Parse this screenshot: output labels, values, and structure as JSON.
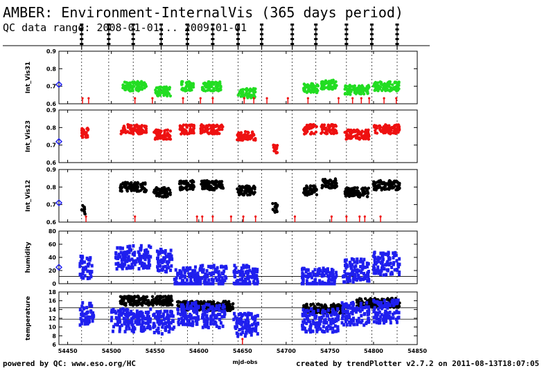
{
  "header": {
    "title": "AMBER: Environment-InternalVis (365 days period)",
    "subtitle": "QC data range: 2008-01-01... 2009-01-01"
  },
  "footer": {
    "left": "powered by QC: www.eso.org/HC",
    "right": "created by trendPlotter v2.7.2 on 2011-08-13T18:07:05"
  },
  "colors": {
    "green": "#22dd22",
    "red": "#ee1111",
    "black": "#000000",
    "blue": "#1f1fee",
    "diamond": "#1f1fee"
  },
  "chart_data": {
    "type": "scatter",
    "xlabel": "mjd-obs",
    "xlim": [
      54440,
      54850
    ],
    "x_ticks": [
      "54450",
      "54500",
      "54550",
      "54600",
      "54650",
      "54700",
      "54750",
      "54800",
      "54850"
    ],
    "night_markers": [
      54466,
      54497,
      54525,
      54557,
      54587,
      54616,
      54645,
      54672,
      54707,
      54734,
      54769,
      54798,
      54827
    ],
    "panels": [
      {
        "ylabel": "Int_Vis31",
        "ylim": [
          0.6,
          0.9
        ],
        "y_ticks": [
          "0.6",
          "0.7",
          "0.8",
          "0.9"
        ],
        "series": [
          {
            "color_key": "green",
            "clusters": [
              [
                54513,
                54540,
                0.7
              ],
              [
                54550,
                54568,
                0.67
              ],
              [
                54580,
                54594,
                0.7
              ],
              [
                54604,
                54626,
                0.7
              ],
              [
                54645,
                54665,
                0.66
              ],
              [
                54720,
                54737,
                0.69
              ],
              [
                54740,
                54758,
                0.71
              ],
              [
                54767,
                54795,
                0.68
              ],
              [
                54800,
                54830,
                0.7
              ]
            ]
          },
          {
            "color_key": "red",
            "marks": [
              54467,
              54474,
              54527,
              54547,
              54582,
              54602,
              54616,
              54652,
              54663,
              54678,
              54702,
              54725,
              54760,
              54776,
              54786,
              54795,
              54812,
              54826
            ]
          }
        ],
        "reference_value": 0.71
      },
      {
        "ylabel": "Int_Vis23",
        "ylim": [
          0.6,
          0.9
        ],
        "y_ticks": [
          "0.6",
          "0.7",
          "0.8",
          "0.9"
        ],
        "series": [
          {
            "color_key": "red",
            "clusters": [
              [
                54466,
                54474,
                0.77
              ],
              [
                54511,
                54540,
                0.79
              ],
              [
                54548,
                54568,
                0.76
              ],
              [
                54578,
                54595,
                0.79
              ],
              [
                54602,
                54628,
                0.79
              ],
              [
                54644,
                54665,
                0.75
              ],
              [
                54685,
                54690,
                0.68
              ],
              [
                54720,
                54735,
                0.79
              ],
              [
                54740,
                54758,
                0.79
              ],
              [
                54767,
                54795,
                0.76
              ],
              [
                54800,
                54830,
                0.79
              ]
            ]
          }
        ],
        "reference_value": 0.72
      },
      {
        "ylabel": "Int_Vis12",
        "ylim": [
          0.6,
          0.9
        ],
        "y_ticks": [
          "0.6",
          "0.7",
          "0.8",
          "0.9"
        ],
        "series": [
          {
            "color_key": "black",
            "clusters": [
              [
                54466,
                54470,
                0.67
              ],
              [
                54510,
                54540,
                0.8
              ],
              [
                54548,
                54568,
                0.77
              ],
              [
                54578,
                54595,
                0.81
              ],
              [
                54602,
                54628,
                0.81
              ],
              [
                54644,
                54665,
                0.78
              ],
              [
                54684,
                54690,
                0.68
              ],
              [
                54720,
                54735,
                0.78
              ],
              [
                54740,
                54758,
                0.82
              ],
              [
                54767,
                54795,
                0.77
              ],
              [
                54800,
                54830,
                0.81
              ]
            ]
          },
          {
            "color_key": "red",
            "marks": [
              54471,
              54527,
              54598,
              54604,
              54616,
              54637,
              54651,
              54665,
              54710,
              54752,
              54769,
              54784,
              54790,
              54808
            ]
          }
        ],
        "reference_value": 0.71
      },
      {
        "ylabel": "humidity",
        "ylim": [
          0,
          80
        ],
        "y_ticks": [
          "0",
          "20",
          "40",
          "60",
          "80"
        ],
        "hlines": [
          11
        ],
        "series": [
          {
            "color_key": "blue",
            "clusters": [
              [
                54464,
                54478,
                25
              ],
              [
                54505,
                54545,
                40
              ],
              [
                54552,
                54570,
                35
              ],
              [
                54572,
                54600,
                8
              ],
              [
                54600,
                54632,
                10
              ],
              [
                54640,
                54668,
                10
              ],
              [
                54718,
                54758,
                6
              ],
              [
                54765,
                54795,
                20
              ],
              [
                54800,
                54830,
                30
              ]
            ]
          }
        ],
        "reference_value": 25
      },
      {
        "ylabel": "temperature",
        "ylim": [
          6,
          18
        ],
        "y_ticks": [
          "6",
          "8",
          "10",
          "12",
          "14",
          "16",
          "18"
        ],
        "hlines": [
          14.4,
          11.8
        ],
        "series": [
          {
            "color_key": "black",
            "clusters": [
              [
                54510,
                54570,
                16.0
              ],
              [
                54575,
                54640,
                14.8
              ],
              [
                54720,
                54770,
                14.2
              ],
              [
                54780,
                54830,
                15.5
              ]
            ]
          },
          {
            "color_key": "blue",
            "clusters": [
              [
                54464,
                54480,
                13.0
              ],
              [
                54500,
                54545,
                11.5
              ],
              [
                54548,
                54572,
                11.0
              ],
              [
                54575,
                54600,
                13.0
              ],
              [
                54604,
                54630,
                12.5
              ],
              [
                54640,
                54668,
                10.5
              ],
              [
                54718,
                54760,
                11.5
              ],
              [
                54764,
                54795,
                13.0
              ],
              [
                54800,
                54830,
                13.5
              ]
            ]
          },
          {
            "color_key": "red",
            "marks": [
              54650
            ]
          }
        ]
      }
    ]
  }
}
